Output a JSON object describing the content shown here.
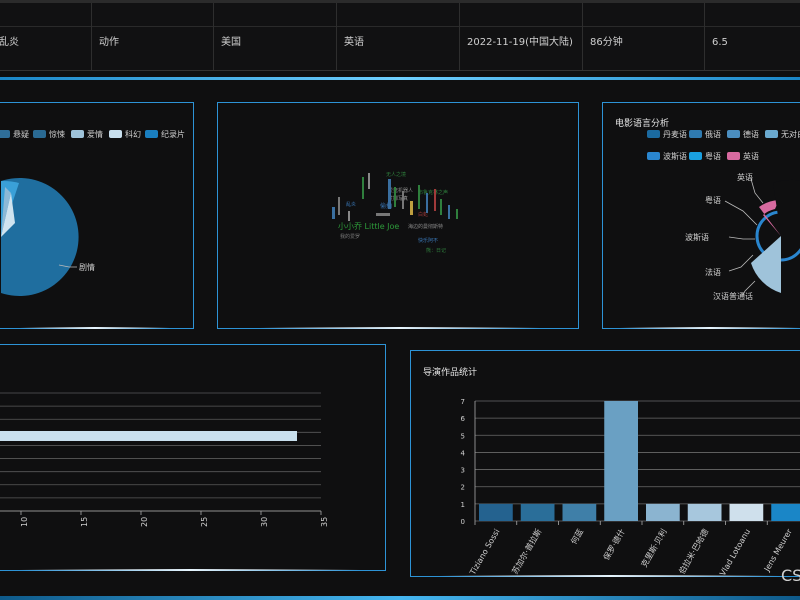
{
  "table_row": {
    "cells": [
      "乱炎",
      "动作",
      "美国",
      "英语",
      "2022-11-19(中国大陆)",
      "86分钟",
      "6.5"
    ]
  },
  "genre_chart": {
    "legend": [
      "悬疑",
      "惊悚",
      "爱情",
      "科幻",
      "纪录片"
    ],
    "legend_colors": [
      "#2f6e99",
      "#2a6a93",
      "#9fc3da",
      "#c8dfee",
      "#1a7fc0"
    ],
    "slice_label": "剧情"
  },
  "word_cloud": {
    "words": [
      "小小乔 Little Joe",
      "偷拍",
      "爱死机器人",
      "艾娜写真",
      "无人之境",
      "海边的曼彻斯特",
      "白蛇",
      "我的爱罗",
      "乱炎",
      "布鲁克林之声",
      "快乐阿不",
      "熊：日记"
    ],
    "colors": [
      "#2d9a3a",
      "#3a78b8",
      "#7a7a7a",
      "#9a9a9a",
      "#2f7f3d"
    ]
  },
  "language_chart": {
    "title": "电影语言分析",
    "legend": [
      "丹麦语",
      "俄语",
      "德语",
      "无对白",
      "波斯语",
      "粤语",
      "英语"
    ],
    "legend_colors": [
      "#1b6aa0",
      "#2f7ab0",
      "#4b8ec0",
      "#6aa9cf",
      "#2a86cf",
      "#1aa0e0",
      "#d86aa0"
    ],
    "labels": [
      "英语",
      "粤语",
      "波斯语",
      "法语",
      "汉语普通话"
    ]
  },
  "country_chart": {
    "chart_data": {
      "type": "bar",
      "orientation": "horizontal",
      "x_ticks": [
        "10",
        "15",
        "20",
        "25",
        "30",
        "35"
      ],
      "values": [
        33
      ],
      "xlim": [
        8,
        35
      ]
    }
  },
  "director_chart": {
    "title": "导演作品统计",
    "chart_data": {
      "type": "bar",
      "categories": [
        "Tiziano Sossi",
        "苏加尔·普拉斯",
        "何蓝",
        "保罗·德什",
        "克里斯·贝利",
        "伯拉米·巴哈德",
        "Vlad Lotoanu",
        "Jens Meurer"
      ],
      "values": [
        1,
        1,
        1,
        7,
        1,
        1,
        1,
        1
      ],
      "y_ticks": [
        "0",
        "1",
        "2",
        "3",
        "4",
        "5",
        "6",
        "7"
      ],
      "ylim": [
        0,
        7
      ],
      "colors": [
        "#24628f",
        "#2a6e99",
        "#3f7fa8",
        "#6aa0c3",
        "#8bb4d0",
        "#a7c7dd",
        "#cfe0ec",
        "#1a86c7"
      ]
    }
  },
  "watermark": "CS"
}
